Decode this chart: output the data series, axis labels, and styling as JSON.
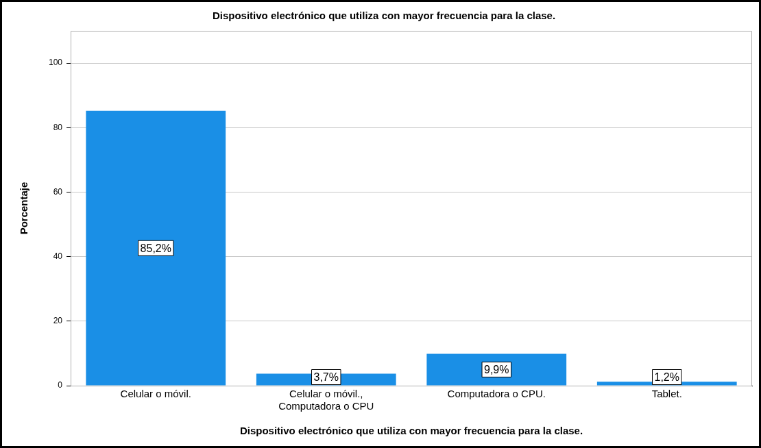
{
  "chart_data": {
    "type": "bar",
    "title": "Dispositivo electrónico que utiliza con mayor frecuencia para la clase.",
    "xlabel": "Dispositivo electrónico que utiliza con mayor frecuencia para la clase.",
    "ylabel": "Porcentaje",
    "categories": [
      "Celular o móvil.",
      "Celular o móvil., Computadora o CPU",
      "Computadora o CPU.",
      "Tablet."
    ],
    "values": [
      85.2,
      3.7,
      9.9,
      1.2
    ],
    "value_labels": [
      "85,2%",
      "3,7%",
      "9,9%",
      "1,2%"
    ],
    "color": "#1a8fe6",
    "ylim": [
      0,
      110
    ],
    "yticks": [
      0,
      20,
      40,
      60,
      80,
      100
    ],
    "grid": "y",
    "legend": false
  }
}
